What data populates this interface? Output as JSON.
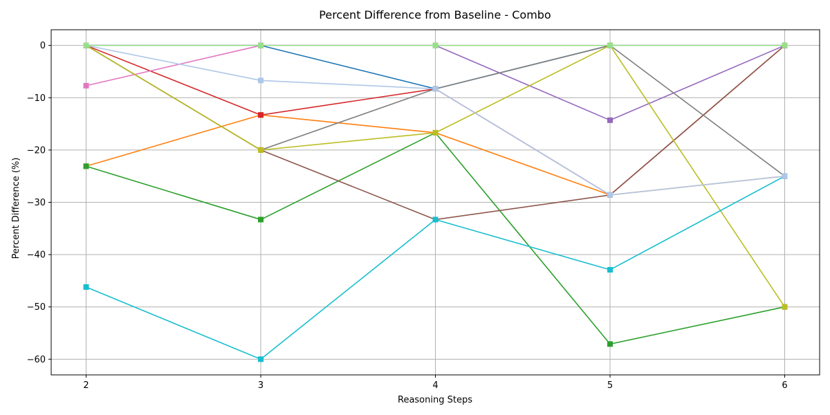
{
  "chart_data": {
    "type": "line",
    "title": "Percent Difference from Baseline - Combo",
    "xlabel": "Reasoning Steps",
    "ylabel": "Percent Difference (%)",
    "x": [
      2,
      3,
      4,
      5,
      6
    ],
    "x_ticks": [
      "2",
      "3",
      "4",
      "5",
      "6"
    ],
    "y_ticks": [
      0,
      -10,
      -20,
      -30,
      -40,
      -50,
      -60
    ],
    "y_tick_labels": [
      "0",
      "−10",
      "−20",
      "−30",
      "−40",
      "−50",
      "−60"
    ],
    "xlim": [
      1.8,
      6.2
    ],
    "ylim": [
      -63,
      3
    ],
    "grid": true,
    "marker": "square",
    "series": [
      {
        "color": "#1f77b4",
        "values": [
          0,
          0,
          -8.3,
          0,
          0
        ]
      },
      {
        "color": "#ff7f0e",
        "values": [
          -23.1,
          -13.3,
          -16.7,
          -28.6,
          -25
        ]
      },
      {
        "color": "#2ca02c",
        "values": [
          -23.1,
          -33.3,
          -16.7,
          -57.1,
          -50
        ]
      },
      {
        "color": "#d62728",
        "values": [
          0,
          -13.3,
          -8.3,
          -28.6,
          0
        ]
      },
      {
        "color": "#9467bd",
        "values": [
          0,
          0,
          0,
          -14.3,
          0
        ]
      },
      {
        "color": "#8c564b",
        "values": [
          0,
          -20,
          -33.3,
          -28.6,
          0
        ]
      },
      {
        "color": "#e377c2",
        "values": [
          -7.7,
          0,
          0,
          0,
          0
        ]
      },
      {
        "color": "#7f7f7f",
        "values": [
          0,
          -20,
          -8.3,
          0,
          -25
        ]
      },
      {
        "color": "#bcbd22",
        "values": [
          0,
          -20,
          -16.7,
          0,
          -50
        ]
      },
      {
        "color": "#17becf",
        "values": [
          -46.2,
          -60,
          -33.3,
          -42.9,
          -25
        ]
      },
      {
        "color": "#aec7e8",
        "values": [
          0,
          -6.7,
          -8.3,
          -28.6,
          -25
        ]
      },
      {
        "color": "#98df8a",
        "values": [
          0,
          0,
          0,
          0,
          0
        ]
      }
    ]
  }
}
